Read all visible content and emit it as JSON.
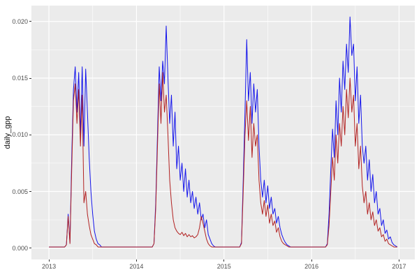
{
  "figure": {
    "x_tick_labels": [
      "2013",
      "2014",
      "2015",
      "2016",
      "2017"
    ],
    "y_tick_labels": [
      "0.000",
      "0.005",
      "0.010",
      "0.015",
      "0.020"
    ],
    "colors": {
      "panel_bg": "#EBEBEB",
      "grid_major": "#FFFFFF",
      "grid_minor": "#FFFFFF",
      "tick_text": "#4D4D4D",
      "tick_mark": "#333333",
      "series_blue": "#1414EB",
      "series_red": "#B22222"
    }
  },
  "chart_data": {
    "type": "line",
    "title": "",
    "xlabel": "",
    "ylabel": "daily_gpp",
    "legend": "none",
    "grid": "on",
    "xlim": [
      2012.8,
      2017.18
    ],
    "ylim": [
      -0.001,
      0.0214
    ],
    "x_ticks": [
      2013,
      2014,
      2015,
      2016,
      2017
    ],
    "x_minor_ticks": [
      2013.5,
      2014.5,
      2015.5,
      2016.5
    ],
    "y_ticks": [
      0.0,
      0.005,
      0.01,
      0.015,
      0.02
    ],
    "y_minor_ticks": [
      0.0025,
      0.0075,
      0.0125,
      0.0175
    ],
    "x_start": 2013.0,
    "x_step": 0.02,
    "n_points": 200,
    "series": [
      {
        "name": "blue",
        "color": "#1414EB",
        "values": [
          0.0001,
          0.0001,
          0.0001,
          0.0001,
          0.0001,
          0.0001,
          0.0001,
          0.0001,
          0.0001,
          0.0001,
          0.0003,
          0.003,
          0.0005,
          0.008,
          0.014,
          0.016,
          0.012,
          0.0155,
          0.01,
          0.016,
          0.009,
          0.0158,
          0.012,
          0.008,
          0.005,
          0.003,
          0.0015,
          0.0008,
          0.0004,
          0.0003,
          0.0001,
          0.0001,
          0.0001,
          0.0001,
          0.0001,
          0.0001,
          0.0001,
          0.0001,
          0.0001,
          0.0001,
          0.0001,
          0.0001,
          0.0001,
          0.0001,
          0.0001,
          0.0001,
          0.0001,
          0.0001,
          0.0001,
          0.0001,
          0.0001,
          0.0001,
          0.0001,
          0.0001,
          0.0001,
          0.0001,
          0.0001,
          0.0001,
          0.0001,
          0.0001,
          0.0004,
          0.004,
          0.01,
          0.016,
          0.013,
          0.0165,
          0.0145,
          0.0196,
          0.015,
          0.011,
          0.0135,
          0.009,
          0.012,
          0.007,
          0.009,
          0.006,
          0.0075,
          0.005,
          0.007,
          0.0045,
          0.006,
          0.004,
          0.005,
          0.0035,
          0.0045,
          0.003,
          0.004,
          0.0025,
          0.003,
          0.0018,
          0.0025,
          0.0012,
          0.0008,
          0.0004,
          0.0002,
          0.0001,
          0.0001,
          0.0001,
          0.0001,
          0.0001,
          0.0001,
          0.0001,
          0.0001,
          0.0001,
          0.0001,
          0.0001,
          0.0001,
          0.0001,
          0.0001,
          0.0001,
          0.0005,
          0.006,
          0.012,
          0.0184,
          0.013,
          0.0155,
          0.011,
          0.0145,
          0.012,
          0.014,
          0.009,
          0.006,
          0.0045,
          0.006,
          0.004,
          0.0055,
          0.0035,
          0.0045,
          0.003,
          0.0035,
          0.0022,
          0.0028,
          0.0018,
          0.0012,
          0.0008,
          0.0005,
          0.0003,
          0.0002,
          0.0001,
          0.0001,
          0.0001,
          0.0001,
          0.0001,
          0.0001,
          0.0001,
          0.0001,
          0.0001,
          0.0001,
          0.0001,
          0.0001,
          0.0001,
          0.0001,
          0.0001,
          0.0001,
          0.0001,
          0.0001,
          0.0001,
          0.0001,
          0.0001,
          0.0004,
          0.003,
          0.007,
          0.0105,
          0.008,
          0.013,
          0.01,
          0.015,
          0.012,
          0.0165,
          0.014,
          0.018,
          0.0155,
          0.0204,
          0.017,
          0.018,
          0.013,
          0.016,
          0.011,
          0.0135,
          0.009,
          0.0075,
          0.009,
          0.006,
          0.0078,
          0.005,
          0.0065,
          0.004,
          0.005,
          0.003,
          0.0035,
          0.002,
          0.0025,
          0.0013,
          0.0016,
          0.0008,
          0.001,
          0.0005,
          0.0003,
          0.0002,
          0.0001
        ]
      },
      {
        "name": "red",
        "color": "#B22222",
        "values": [
          0.0001,
          0.0001,
          0.0001,
          0.0001,
          0.0001,
          0.0001,
          0.0001,
          0.0001,
          0.0001,
          0.0001,
          0.0003,
          0.0028,
          0.0004,
          0.007,
          0.013,
          0.0145,
          0.011,
          0.014,
          0.009,
          0.0135,
          0.004,
          0.005,
          0.003,
          0.002,
          0.0012,
          0.0008,
          0.0004,
          0.0003,
          0.0001,
          0.0001,
          0.0001,
          0.0001,
          0.0001,
          0.0001,
          0.0001,
          0.0001,
          0.0001,
          0.0001,
          0.0001,
          0.0001,
          0.0001,
          0.0001,
          0.0001,
          0.0001,
          0.0001,
          0.0001,
          0.0001,
          0.0001,
          0.0001,
          0.0001,
          0.0001,
          0.0001,
          0.0001,
          0.0001,
          0.0001,
          0.0001,
          0.0001,
          0.0001,
          0.0001,
          0.0001,
          0.0004,
          0.0035,
          0.009,
          0.0145,
          0.011,
          0.0155,
          0.012,
          0.0135,
          0.01,
          0.006,
          0.004,
          0.0025,
          0.0018,
          0.0015,
          0.0013,
          0.0012,
          0.0014,
          0.0011,
          0.0013,
          0.001,
          0.0012,
          0.001,
          0.0011,
          0.0009,
          0.001,
          0.0012,
          0.0018,
          0.0028,
          0.0022,
          0.0015,
          0.0008,
          0.0004,
          0.0002,
          0.0001,
          0.0001,
          0.0001,
          0.0001,
          0.0001,
          0.0001,
          0.0001,
          0.0001,
          0.0001,
          0.0001,
          0.0001,
          0.0001,
          0.0001,
          0.0001,
          0.0001,
          0.0001,
          0.0001,
          0.0004,
          0.005,
          0.01,
          0.013,
          0.0095,
          0.0125,
          0.008,
          0.011,
          0.009,
          0.01,
          0.006,
          0.004,
          0.003,
          0.0042,
          0.0028,
          0.0038,
          0.0022,
          0.003,
          0.002,
          0.0024,
          0.0014,
          0.0018,
          0.001,
          0.0006,
          0.0004,
          0.0003,
          0.0002,
          0.0001,
          0.0001,
          0.0001,
          0.0001,
          0.0001,
          0.0001,
          0.0001,
          0.0001,
          0.0001,
          0.0001,
          0.0001,
          0.0001,
          0.0001,
          0.0001,
          0.0001,
          0.0001,
          0.0001,
          0.0001,
          0.0001,
          0.0001,
          0.0001,
          0.0001,
          0.0003,
          0.002,
          0.005,
          0.008,
          0.006,
          0.01,
          0.0075,
          0.011,
          0.009,
          0.0125,
          0.01,
          0.014,
          0.0115,
          0.015,
          0.012,
          0.0135,
          0.009,
          0.011,
          0.007,
          0.009,
          0.0055,
          0.004,
          0.005,
          0.003,
          0.004,
          0.0025,
          0.0032,
          0.002,
          0.0025,
          0.0015,
          0.0018,
          0.001,
          0.0012,
          0.0006,
          0.0008,
          0.0004,
          0.0003,
          0.0002,
          0.0001,
          0.0001,
          0.0001
        ]
      }
    ]
  }
}
